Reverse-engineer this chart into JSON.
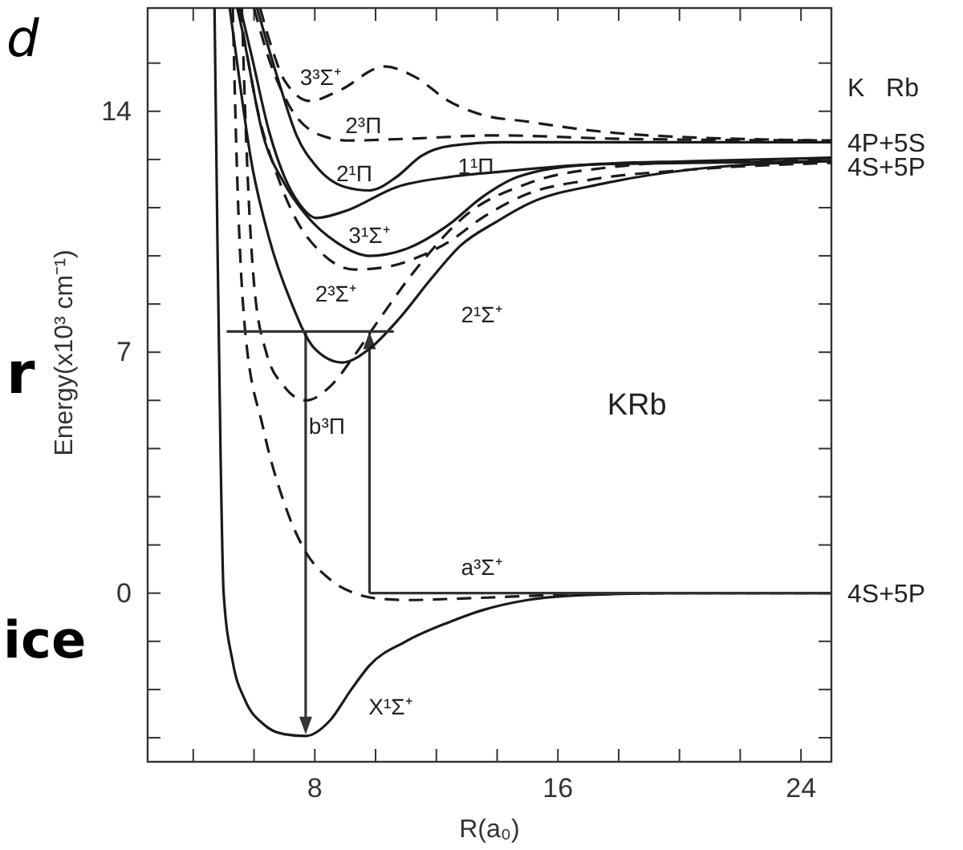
{
  "chart_data": {
    "type": "line",
    "xlabel": "R(a₀)",
    "ylabel": "Energy(x10³ cm⁻¹)",
    "xlim": [
      2.5,
      25
    ],
    "ylim": [
      -4.9,
      17
    ],
    "xticks": [
      {
        "value": 4,
        "label": null
      },
      {
        "value": 6,
        "label": null
      },
      8,
      {
        "value": 10,
        "label": null
      },
      {
        "value": 12,
        "label": null
      },
      {
        "value": 14,
        "label": null
      },
      16,
      {
        "value": 18,
        "label": null
      },
      {
        "value": 20,
        "label": null
      },
      {
        "value": 22,
        "label": null
      },
      24
    ],
    "yticks": [
      {
        "value": -4.2,
        "label": null
      },
      {
        "value": -2.8,
        "label": null
      },
      {
        "value": -1.4,
        "label": null
      },
      0,
      {
        "value": 1.4,
        "label": null
      },
      {
        "value": 2.8,
        "label": null
      },
      {
        "value": 4.2,
        "label": null
      },
      {
        "value": 5.6,
        "label": null
      },
      7,
      {
        "value": 8.4,
        "label": null
      },
      {
        "value": 9.8,
        "label": null
      },
      {
        "value": 11.2,
        "label": null
      },
      {
        "value": 12.6,
        "label": null
      },
      14,
      {
        "value": 15.4,
        "label": null
      }
    ],
    "series": [
      {
        "color": "#1a1a1a",
        "line_style": "solid",
        "x": [
          4.7,
          4.8,
          4.9,
          5.0,
          5.3,
          5.7,
          6.3,
          7,
          7.7,
          8.5,
          9.2,
          9.8,
          11,
          12.4,
          13.5,
          15,
          17,
          20,
          25
        ],
        "values": [
          17,
          10,
          4,
          0,
          -2,
          -3.1,
          -3.8,
          -4.1,
          -4.15,
          -3.7,
          -2.8,
          -2.1,
          -1.4,
          -0.85,
          -0.5,
          -0.2,
          -0.05,
          0,
          0
        ]
      },
      {
        "color": "#1a1a1a",
        "line_style": "dashed",
        "x": [
          5.3,
          5.45,
          5.7,
          6.3,
          7,
          7.7,
          8.5,
          9.3,
          10,
          11,
          13,
          16,
          20,
          25
        ],
        "values": [
          17,
          12,
          7.7,
          4.8,
          2.6,
          1.2,
          0.4,
          0,
          -0.15,
          -0.2,
          -0.15,
          -0.05,
          0,
          0
        ]
      },
      {
        "color": "#1a1a1a",
        "line_style": "dashed",
        "x": [
          5.6,
          5.75,
          6.0,
          6.4,
          7,
          7.7,
          8.5,
          9.3,
          10,
          11.5,
          13,
          15,
          18,
          21,
          25
        ],
        "values": [
          17,
          13,
          9,
          7,
          6,
          5.6,
          6,
          6.9,
          7.8,
          9.6,
          11,
          11.9,
          12.4,
          12.55,
          12.6
        ]
      },
      {
        "color": "#1a1a1a",
        "line_style": "dashed",
        "x": [
          5.5,
          5.8,
          6.1,
          6.7,
          7.3,
          8.2,
          9.3,
          10.5,
          11.5,
          12.4,
          13.5,
          15,
          17,
          20.3,
          25
        ],
        "values": [
          17,
          15.5,
          14.1,
          12.3,
          11.0,
          9.9,
          9.4,
          9.5,
          9.8,
          10.2,
          10.9,
          11.6,
          12.0,
          12.3,
          12.5
        ]
      },
      {
        "color": "#1a1a1a",
        "line_style": "solid",
        "x": [
          5.2,
          5.4,
          5.9,
          6.5,
          7.2,
          8,
          8.9,
          9.8,
          10.8,
          11.8,
          12.8,
          14,
          15,
          17.5,
          20.3,
          25
        ],
        "values": [
          17,
          15.7,
          12.6,
          10.3,
          8.5,
          7.1,
          6.7,
          7.1,
          8.0,
          9.1,
          10.1,
          10.8,
          11.3,
          11.9,
          12.3,
          12.55
        ]
      },
      {
        "color": "#1a1a1a",
        "line_style": "solid",
        "x": [
          5.45,
          5.6,
          6.3,
          7,
          7.7,
          8.7,
          9.8,
          11,
          12.4,
          13.5,
          14.7,
          17,
          20.3,
          25
        ],
        "values": [
          17,
          16.4,
          13.3,
          11.9,
          11.0,
          10.2,
          9.8,
          10.0,
          10.7,
          11.5,
          12.1,
          12.45,
          12.55,
          12.65
        ]
      },
      {
        "color": "#1a1a1a",
        "line_style": "solid",
        "x": [
          5.55,
          5.9,
          6.5,
          7,
          7.5,
          8.05,
          9,
          10.7,
          12.5,
          14.2,
          17,
          20.3,
          25
        ],
        "values": [
          17,
          15.7,
          13.4,
          12.1,
          11.3,
          10.9,
          11.1,
          11.8,
          12.1,
          12.25,
          12.45,
          12.5,
          12.55
        ]
      },
      {
        "color": "#1a1a1a",
        "line_style": "solid",
        "x": [
          6.1,
          6.8,
          7.4,
          8.05,
          9,
          9.8,
          10.7,
          11.5,
          12.5,
          14.2,
          25
        ],
        "values": [
          17,
          14.9,
          13.3,
          12.4,
          11.8,
          11.7,
          12.1,
          12.7,
          13.0,
          13.1,
          13.1
        ]
      },
      {
        "color": "#1a1a1a",
        "line_style": "dashed",
        "x": [
          6.0,
          6.5,
          7.2,
          8.2,
          9.1,
          11,
          14,
          18,
          25
        ],
        "values": [
          17,
          15.5,
          14.1,
          13.3,
          13.15,
          13.2,
          13.3,
          13.2,
          13.15
        ]
      },
      {
        "color": "#1a1a1a",
        "line_style": "dashed",
        "x": [
          6.2,
          6.6,
          7,
          7.85,
          8.8,
          10.3,
          11.3,
          12.4,
          13.5,
          15,
          17,
          19,
          25
        ],
        "values": [
          17,
          15.8,
          14.9,
          14.3,
          14.6,
          15.3,
          15.0,
          14.3,
          13.9,
          13.7,
          13.45,
          13.3,
          13.15
        ]
      },
      {
        "color": "#333333",
        "line_style": "solid",
        "x": [
          5.1,
          10.6
        ],
        "values": [
          7.6,
          7.6
        ]
      },
      {
        "color": "#333333",
        "line_style": "solid",
        "x": [
          9.8,
          25
        ],
        "values": [
          0,
          0
        ]
      }
    ],
    "annotations": [
      "d",
      "r",
      "ice",
      "3³Σ⁺",
      "2³Π",
      "2¹Π",
      "1¹Π",
      "3¹Σ⁺",
      "2³Σ⁺",
      "2¹Σ⁺",
      "b³Π",
      "a³Σ⁺",
      "X¹Σ⁺",
      "KRb",
      "K   Rb",
      "4P+5S",
      "4S+5P",
      "4S+5P"
    ]
  }
}
